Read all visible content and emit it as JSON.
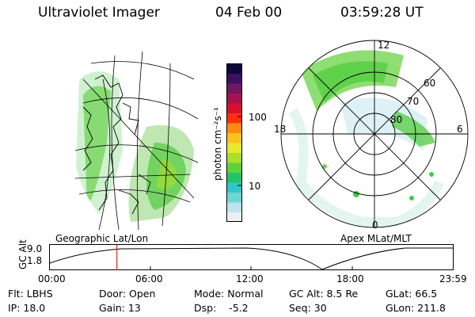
{
  "header": {
    "instrument": "Ultraviolet Imager",
    "date": "04 Feb 00",
    "time": "03:59:28 UT"
  },
  "geo_panel": {
    "label": "Geographic Lat/Lon"
  },
  "colorbar": {
    "unit_label": "photon cm⁻²s⁻¹",
    "ticks": [
      "100",
      "10"
    ],
    "scale": "log",
    "colors": [
      "#e8f0f4",
      "#bfe3ea",
      "#6fd6d6",
      "#2fc8c8",
      "#22c46a",
      "#5fd23a",
      "#a8e02a",
      "#e8e82a",
      "#ffc21a",
      "#ff8a12",
      "#ff3010",
      "#d81030",
      "#a81050",
      "#701860",
      "#3a1060",
      "#100838"
    ]
  },
  "polar_panel": {
    "label": "Apex MLat/MLT",
    "mlt_labels": {
      "top": "12",
      "left": "18",
      "right": "6",
      "bottom": "0"
    },
    "lat_labels": [
      "60",
      "70",
      "80"
    ]
  },
  "timeline": {
    "ylabel": "GC Alt",
    "ticks_y": [
      "9.0",
      "1.8"
    ],
    "ticks_x": [
      "00:00",
      "06:00",
      "12:00",
      "18:00",
      "23:59"
    ],
    "current_time_fraction": 0.166,
    "marker_color": "#e02020"
  },
  "info": {
    "flt": "Flt: LBHS",
    "door": "Door: Open",
    "mode": "Mode: Normal",
    "gcalt": "GC Alt: 8.5 Re",
    "glat": "GLat: 66.5",
    "ip": "IP: 18.0",
    "gain": "Gain: 13",
    "dsp": "Dsp:    -5.2",
    "seq": "Seq: 30",
    "glon": "GLon: 211.8"
  }
}
